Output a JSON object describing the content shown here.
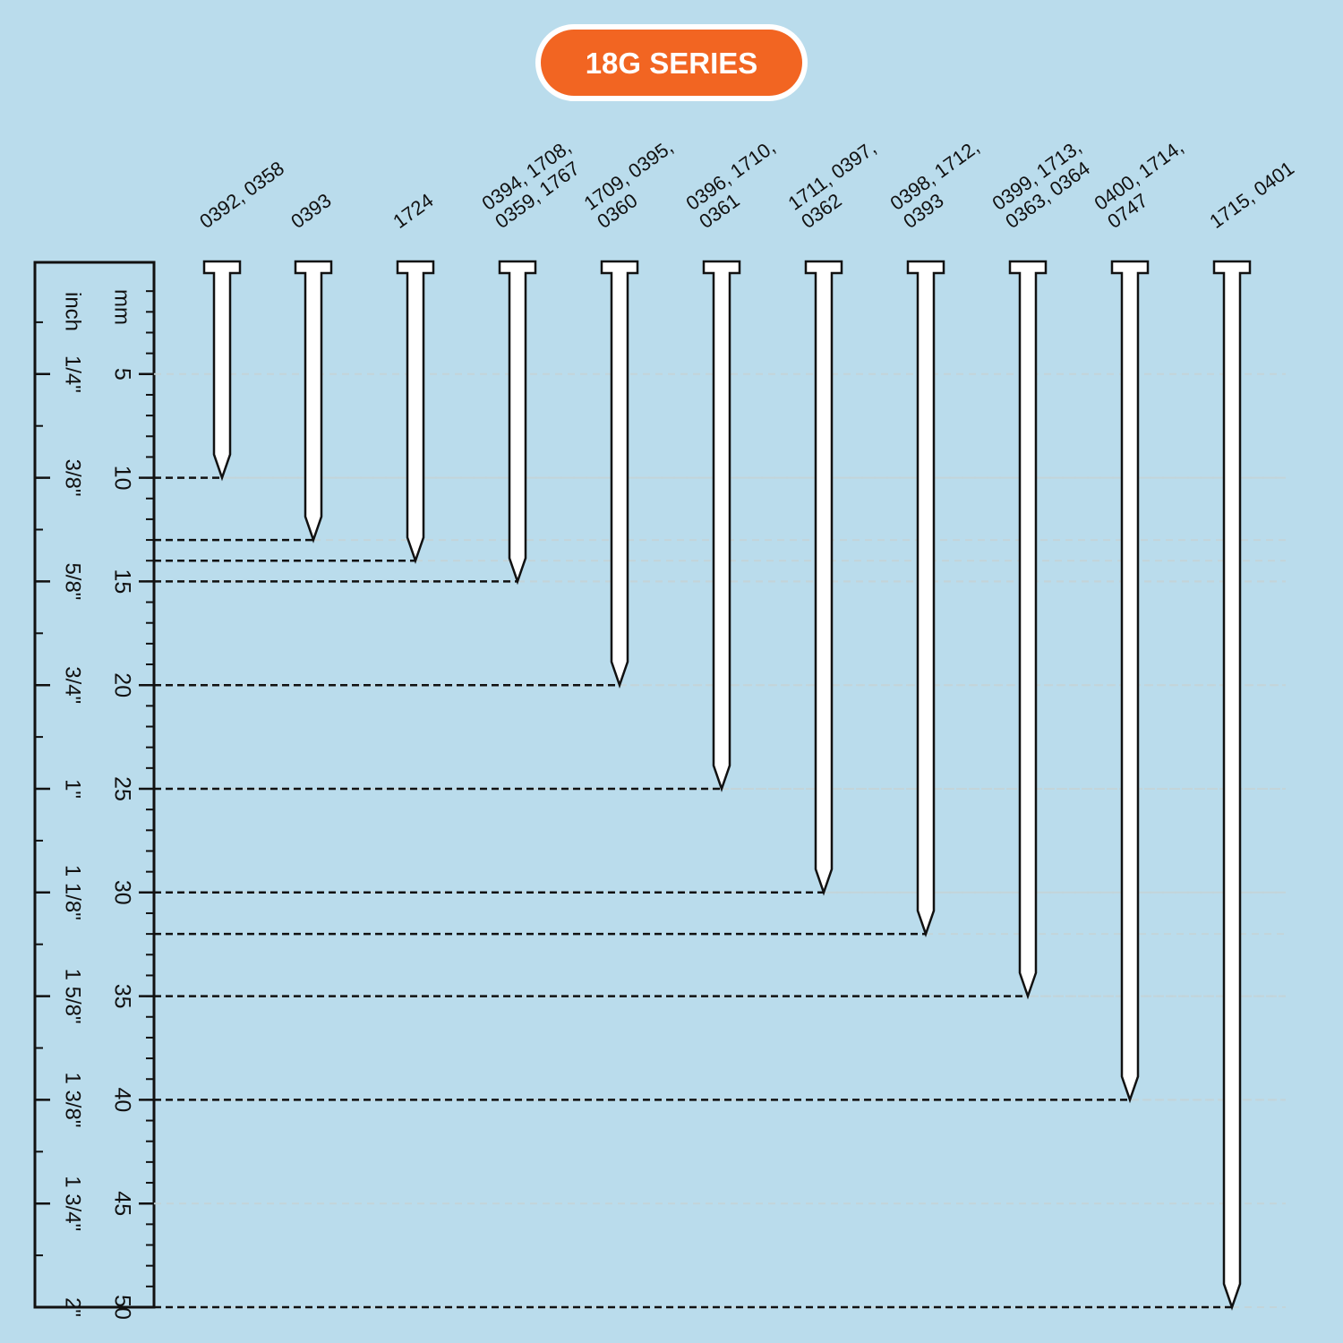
{
  "chart_data": {
    "type": "nail",
    "title": "18G SERIES",
    "categories": [
      [
        "0392, 0358"
      ],
      [
        "0393"
      ],
      [
        "1724"
      ],
      [
        "0394, 1708,",
        "0359, 1767"
      ],
      [
        "1709, 0395,",
        "0360"
      ],
      [
        "0396, 1710,",
        "0361"
      ],
      [
        "1711, 0397,",
        "0362"
      ],
      [
        "0398, 1712,",
        "0393"
      ],
      [
        "0399, 1713,",
        "0363, 0364"
      ],
      [
        "0400, 1714,",
        "0747"
      ],
      [
        "1715, 0401"
      ]
    ],
    "values": [
      10,
      13,
      14,
      15,
      20,
      25,
      30,
      32,
      35,
      40,
      50
    ],
    "ylabel": "mm",
    "ylim": [
      0,
      50
    ],
    "yticks": [
      5,
      10,
      15,
      20,
      25,
      30,
      35,
      40,
      45,
      50
    ],
    "y2label": "inch",
    "y2lim": [
      0,
      50
    ],
    "y2ticks": [
      {
        "value": 5,
        "label": "1/4\""
      },
      {
        "value": 10,
        "label": "3/8\""
      },
      {
        "value": 15,
        "label": "5/8\""
      },
      {
        "value": 20,
        "label": "3/4\""
      },
      {
        "value": 25,
        "label": "1\""
      },
      {
        "value": 30,
        "label": "1 1/8\""
      },
      {
        "value": 35,
        "label": "1 5/8\""
      },
      {
        "value": 40,
        "label": "1 3/8\""
      },
      {
        "value": 45,
        "label": "1 3/4\""
      },
      {
        "value": 50,
        "label": "2\""
      }
    ],
    "grid": true,
    "color": "#ffffff",
    "title_color": "#f26522"
  }
}
